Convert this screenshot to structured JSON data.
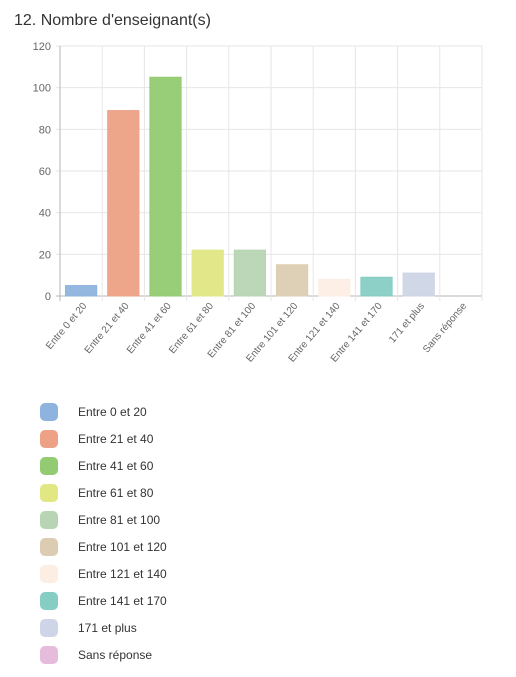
{
  "title": "12. Nombre d'enseignant(s)",
  "chart_data": {
    "type": "bar",
    "categories": [
      "Entre 0 et 20",
      "Entre 21 et 40",
      "Entre 41 et 60",
      "Entre 61 et 80",
      "Entre 81 et 100",
      "Entre 101 et 120",
      "Entre 121 et 140",
      "Entre 141 et 170",
      "171 et plus",
      "Sans réponse"
    ],
    "values": [
      5,
      89,
      105,
      22,
      22,
      15,
      8,
      9,
      11,
      0
    ],
    "colors": [
      "#8eb3de",
      "#eda185",
      "#92cb71",
      "#e0e783",
      "#b8d4b4",
      "#dccdb2",
      "#fdeee4",
      "#86cdc4",
      "#cdd5e6",
      "#e5bcdc"
    ],
    "ylim": [
      0,
      120
    ],
    "yticks": [
      "0",
      "20",
      "40",
      "60",
      "80",
      "100",
      "120"
    ],
    "grid": true,
    "legend_position": "bottom"
  }
}
